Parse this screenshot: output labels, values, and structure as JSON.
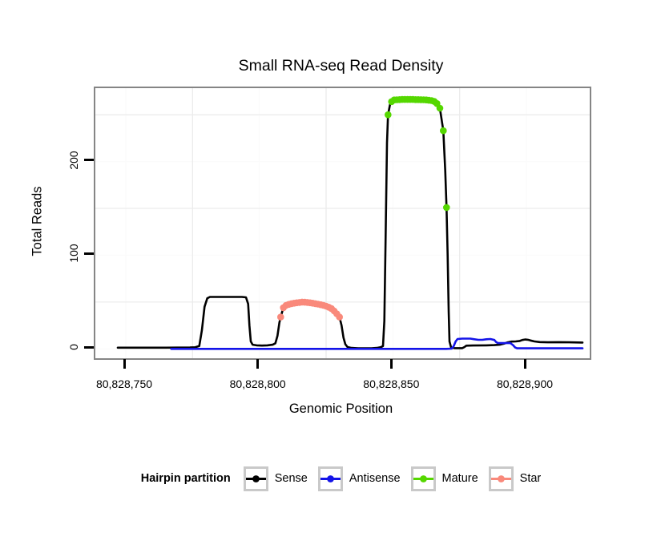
{
  "title": "Small RNA-seq Read Density",
  "axes": {
    "x": {
      "label": "Genomic Position",
      "ticks": [
        {
          "value": 80828750,
          "label": "80,828,750"
        },
        {
          "value": 80828800,
          "label": "80,828,800"
        },
        {
          "value": 80828850,
          "label": "80,828,850"
        },
        {
          "value": 80828900,
          "label": "80,828,900"
        }
      ]
    },
    "y": {
      "label": "Total Reads",
      "ticks": [
        {
          "value": 0,
          "label": "0"
        },
        {
          "value": 100,
          "label": "100"
        },
        {
          "value": 200,
          "label": "200"
        }
      ]
    }
  },
  "legend": {
    "title": "Hairpin partition",
    "position": "bottom",
    "items": [
      {
        "label": "Sense",
        "color": "#000000"
      },
      {
        "label": "Antisense",
        "color": "#1414e8"
      },
      {
        "label": "Mature",
        "color": "#55d700"
      },
      {
        "label": "Star",
        "color": "#f9897b"
      }
    ]
  },
  "chart_data": {
    "type": "line",
    "title": "Small RNA-seq Read Density",
    "xlabel": "Genomic Position",
    "ylabel": "Total Reads",
    "xlim": [
      80828738.6,
      80828923.7
    ],
    "ylim": [
      -10,
      278.4
    ],
    "x_ticks": [
      80828750,
      80828800,
      80828850,
      80828900
    ],
    "y_ticks": [
      0,
      100,
      200
    ],
    "grid": {
      "minor_x": [
        80828775,
        80828825,
        80828875
      ],
      "minor_y": [
        50,
        150,
        250
      ],
      "major_x": [
        80828750,
        80828800,
        80828850,
        80828900
      ],
      "major_y": [
        0,
        100,
        200
      ]
    },
    "series": [
      {
        "name": "Sense",
        "geom": "line",
        "color": "#000000",
        "points": [
          [
            80828747,
            1.3
          ],
          [
            80828765,
            1.3
          ],
          [
            80828774,
            1.5
          ],
          [
            80828776,
            1.7
          ],
          [
            80828777.5,
            3
          ],
          [
            80828778.5,
            20
          ],
          [
            80828779.5,
            45
          ],
          [
            80828780.5,
            54
          ],
          [
            80828781.5,
            55.5
          ],
          [
            80828793.5,
            55.5
          ],
          [
            80828795,
            55
          ],
          [
            80828795.8,
            48
          ],
          [
            80828796.3,
            25
          ],
          [
            80828796.8,
            8
          ],
          [
            80828797.5,
            4.5
          ],
          [
            80828799,
            3.8
          ],
          [
            80828801,
            3.5
          ],
          [
            80828803,
            3.8
          ],
          [
            80828805,
            4.5
          ],
          [
            80828806,
            6
          ],
          [
            80828806.8,
            14
          ],
          [
            80828807.5,
            28
          ],
          [
            80828808,
            34
          ],
          [
            80828809,
            44
          ],
          [
            80828810,
            46.5
          ],
          [
            80828811,
            47.5
          ],
          [
            80828812,
            48.3
          ],
          [
            80828813,
            48.8
          ],
          [
            80828814,
            49.2
          ],
          [
            80828815,
            49.6
          ],
          [
            80828816,
            50
          ],
          [
            80828817,
            49.8
          ],
          [
            80828818,
            49.6
          ],
          [
            80828819,
            49.2
          ],
          [
            80828820,
            48.8
          ],
          [
            80828821,
            48.3
          ],
          [
            80828822,
            47.8
          ],
          [
            80828823,
            47.2
          ],
          [
            80828824,
            46.5
          ],
          [
            80828825,
            45.6
          ],
          [
            80828826,
            44.5
          ],
          [
            80828827,
            43
          ],
          [
            80828828,
            40.5
          ],
          [
            80828829,
            37.5
          ],
          [
            80828830,
            34
          ],
          [
            80828830.8,
            25
          ],
          [
            80828831.5,
            12
          ],
          [
            80828832.2,
            5
          ],
          [
            80828833,
            2
          ],
          [
            80828834.5,
            1
          ],
          [
            80828837,
            0.6
          ],
          [
            80828842,
            0.6
          ],
          [
            80828844,
            1
          ],
          [
            80828845.5,
            1.8
          ],
          [
            80828846.3,
            3
          ],
          [
            80828846.8,
            30
          ],
          [
            80828847.3,
            120
          ],
          [
            80828847.8,
            220
          ],
          [
            80828848.2,
            250
          ],
          [
            80828849,
            262
          ],
          [
            80828850,
            265.5
          ],
          [
            80828852,
            266
          ],
          [
            80828862,
            266.3
          ],
          [
            80828864,
            265.5
          ],
          [
            80828865.5,
            264
          ],
          [
            80828866.8,
            261
          ],
          [
            80828867.6,
            257
          ],
          [
            80828868.9,
            233
          ],
          [
            80828869.6,
            190
          ],
          [
            80828870.1,
            151
          ],
          [
            80828870.5,
            100
          ],
          [
            80828870.9,
            40
          ],
          [
            80828871.2,
            8
          ],
          [
            80828871.8,
            1.5
          ],
          [
            80828873,
            0.8
          ],
          [
            80828876,
            0.8
          ],
          [
            80828876.8,
            2
          ],
          [
            80828877.5,
            3.4
          ],
          [
            80828880,
            3.6
          ],
          [
            80828885,
            3.8
          ],
          [
            80828888,
            4
          ],
          [
            80828890,
            4.5
          ],
          [
            80828891.5,
            5.5
          ],
          [
            80828893,
            7
          ],
          [
            80828894.5,
            7.8
          ],
          [
            80828896,
            8
          ],
          [
            80828897.5,
            8.5
          ],
          [
            80828898.5,
            9.5
          ],
          [
            80828899.5,
            10
          ],
          [
            80828900.5,
            9.8
          ],
          [
            80828901.5,
            9
          ],
          [
            80828903,
            8
          ],
          [
            80828905,
            7.3
          ],
          [
            80828908,
            7
          ],
          [
            80828912,
            7.2
          ],
          [
            80828916,
            7
          ],
          [
            80828921,
            6.8
          ]
        ]
      },
      {
        "name": "Antisense",
        "geom": "line",
        "color": "#1414e8",
        "points": [
          [
            80828767,
            0
          ],
          [
            80828870,
            0
          ],
          [
            80828872,
            0.3
          ],
          [
            80828872.8,
            3
          ],
          [
            80828873.5,
            8
          ],
          [
            80828874.2,
            10.5
          ],
          [
            80828876,
            11
          ],
          [
            80828879,
            11
          ],
          [
            80828880.5,
            10.3
          ],
          [
            80828882,
            9.7
          ],
          [
            80828883.5,
            9.7
          ],
          [
            80828885,
            10.3
          ],
          [
            80828886.5,
            10.5
          ],
          [
            80828888,
            9.5
          ],
          [
            80828888.6,
            7.5
          ],
          [
            80828889.3,
            6.3
          ],
          [
            80828894,
            6.2
          ],
          [
            80828895,
            4
          ],
          [
            80828895.8,
            1.5
          ],
          [
            80828896.5,
            0.6
          ],
          [
            80828921,
            0.6
          ]
        ]
      },
      {
        "name": "Mature",
        "geom": "point",
        "color": "#55d700",
        "points": [
          [
            80828848.2,
            250
          ],
          [
            80828849.5,
            264
          ],
          [
            80828850.5,
            265.8
          ],
          [
            80828851.5,
            266
          ],
          [
            80828852.5,
            266.2
          ],
          [
            80828853.5,
            266.3
          ],
          [
            80828854.5,
            266.3
          ],
          [
            80828855.5,
            266.3
          ],
          [
            80828856.5,
            266.3
          ],
          [
            80828857.5,
            266.3
          ],
          [
            80828858.5,
            266.2
          ],
          [
            80828859.5,
            266.2
          ],
          [
            80828860.5,
            266.1
          ],
          [
            80828861.5,
            266
          ],
          [
            80828862.5,
            265.8
          ],
          [
            80828863.5,
            265.5
          ],
          [
            80828864.5,
            265.1
          ],
          [
            80828865.5,
            264.2
          ],
          [
            80828866.5,
            262
          ],
          [
            80828867.6,
            257
          ],
          [
            80828868.9,
            233
          ],
          [
            80828870.1,
            151
          ]
        ]
      },
      {
        "name": "Star",
        "geom": "point",
        "color": "#f9897b",
        "points": [
          [
            80828808,
            34
          ],
          [
            80828809,
            44
          ],
          [
            80828810,
            46.5
          ],
          [
            80828811,
            47.5
          ],
          [
            80828812,
            48.3
          ],
          [
            80828813,
            48.8
          ],
          [
            80828814,
            49.2
          ],
          [
            80828815,
            49.6
          ],
          [
            80828816,
            50
          ],
          [
            80828817,
            49.8
          ],
          [
            80828818,
            49.6
          ],
          [
            80828819,
            49.2
          ],
          [
            80828820,
            48.8
          ],
          [
            80828821,
            48.3
          ],
          [
            80828822,
            47.8
          ],
          [
            80828823,
            47.2
          ],
          [
            80828824,
            46.5
          ],
          [
            80828825,
            45.6
          ],
          [
            80828826,
            44.5
          ],
          [
            80828827,
            43
          ],
          [
            80828828,
            40.5
          ],
          [
            80828829,
            37.5
          ],
          [
            80828830,
            34
          ]
        ]
      }
    ]
  }
}
